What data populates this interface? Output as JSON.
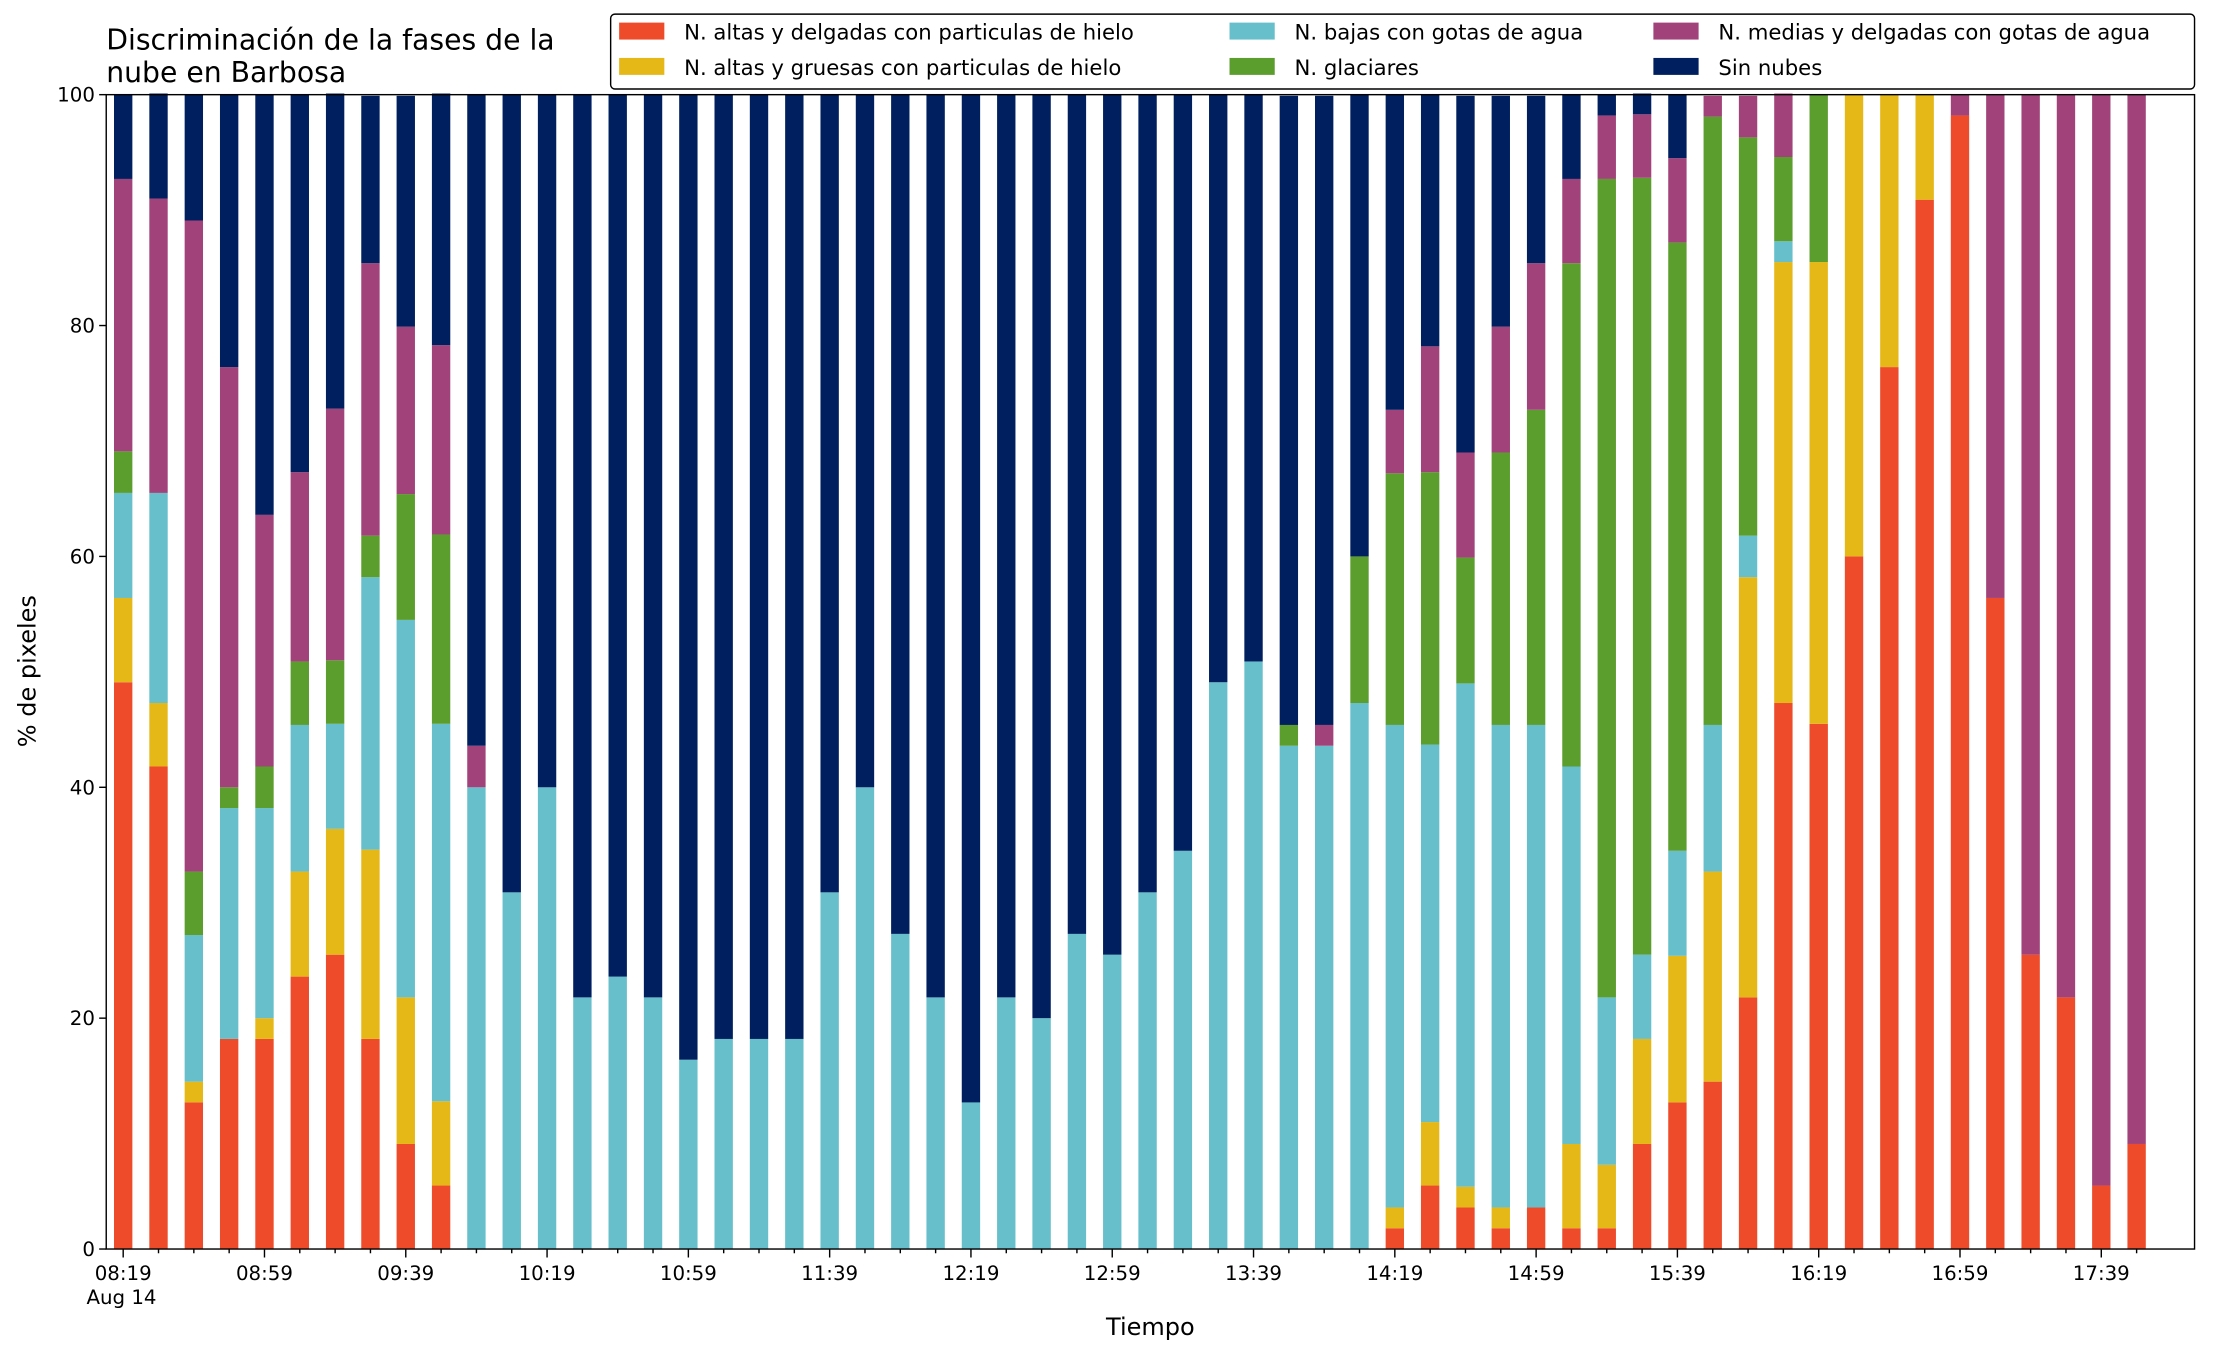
{
  "chart_data": {
    "type": "stacked-bar",
    "title": [
      "Discriminación de la fases de la",
      "nube en Barbosa"
    ],
    "xlabel": "Tiempo",
    "ylabel": "% de pixeles",
    "x_date_label": "Aug 14",
    "categories": [
      "08:19",
      null,
      null,
      null,
      "08:59",
      null,
      null,
      null,
      "09:39",
      null,
      null,
      null,
      "10:19",
      null,
      null,
      null,
      "10:59",
      null,
      null,
      null,
      "11:39",
      null,
      null,
      null,
      "12:19",
      null,
      null,
      null,
      "12:59",
      null,
      null,
      null,
      "13:39",
      null,
      null,
      null,
      "14:19",
      null,
      null,
      null,
      "14:59",
      null,
      null,
      null,
      "15:39",
      null,
      null,
      null,
      "16:19",
      null,
      null,
      null,
      "16:59",
      null,
      null,
      null,
      "17:39",
      null
    ],
    "ylim": [
      0,
      100
    ],
    "yticks": [
      0,
      20,
      40,
      60,
      80,
      100
    ],
    "legend": "top",
    "series": [
      {
        "name": "N. altas y delgadas con particulas de hielo",
        "color": "#ee4b2b",
        "values": [
          49.1,
          41.8,
          12.7,
          18.2,
          18.2,
          23.6,
          25.5,
          18.2,
          9.1,
          5.5,
          0,
          0,
          0,
          0,
          0,
          0,
          0,
          0,
          0,
          0,
          0,
          0,
          0,
          0,
          0,
          0,
          0,
          0,
          0,
          0,
          0,
          0,
          0,
          0,
          0,
          0,
          1.8,
          5.5,
          3.6,
          1.8,
          3.6,
          1.8,
          1.8,
          9.1,
          12.7,
          14.5,
          21.8,
          47.3,
          45.5,
          60.0,
          76.4,
          90.9,
          98.2,
          56.4,
          25.5,
          21.8,
          5.5,
          9.1
        ]
      },
      {
        "name": "N. altas y gruesas con particulas de hielo",
        "color": "#e6b817",
        "values": [
          7.3,
          5.5,
          1.8,
          0,
          1.8,
          9.1,
          10.9,
          16.4,
          12.7,
          7.3,
          0,
          0,
          0,
          0,
          0,
          0,
          0,
          0,
          0,
          0,
          0,
          0,
          0,
          0,
          0,
          0,
          0,
          0,
          0,
          0,
          0,
          0,
          0,
          0,
          0,
          0,
          1.8,
          5.5,
          1.8,
          1.8,
          0,
          7.3,
          5.5,
          9.1,
          12.7,
          18.2,
          36.4,
          38.2,
          40.0,
          40.0,
          23.6,
          9.1,
          0,
          0,
          0,
          0,
          0,
          0
        ]
      },
      {
        "name": "N. bajas con gotas de agua",
        "color": "#66bfcb",
        "values": [
          9.1,
          18.2,
          12.7,
          20.0,
          18.2,
          12.7,
          9.1,
          23.6,
          32.7,
          32.7,
          40.0,
          30.9,
          40.0,
          21.8,
          23.6,
          21.8,
          16.4,
          18.2,
          18.2,
          18.2,
          30.9,
          40.0,
          27.3,
          21.8,
          12.7,
          21.8,
          20.0,
          27.3,
          25.5,
          30.9,
          34.5,
          49.1,
          50.9,
          43.6,
          43.6,
          47.3,
          41.8,
          32.7,
          43.6,
          41.8,
          41.8,
          32.7,
          14.5,
          7.3,
          9.1,
          12.7,
          3.6,
          1.8,
          0,
          0,
          0,
          0,
          0,
          0,
          0,
          0,
          0,
          0
        ]
      },
      {
        "name": "N. glaciares",
        "color": "#5c9e2e",
        "values": [
          3.6,
          0,
          5.5,
          1.8,
          3.6,
          5.5,
          5.5,
          3.6,
          10.9,
          16.4,
          0,
          0,
          0,
          0,
          0,
          0,
          0,
          0,
          0,
          0,
          0,
          0,
          0,
          0,
          0,
          0,
          0,
          0,
          0,
          0,
          0,
          0,
          0,
          1.8,
          0,
          12.7,
          21.8,
          23.6,
          10.9,
          23.6,
          27.3,
          43.6,
          70.9,
          67.3,
          52.7,
          52.7,
          34.5,
          7.3,
          14.5,
          0,
          0,
          0,
          0,
          0,
          0,
          0,
          0,
          0
        ]
      },
      {
        "name": "N. medias y delgadas con gotas de agua",
        "color": "#a1437a",
        "values": [
          23.6,
          25.5,
          56.4,
          36.4,
          21.8,
          16.4,
          21.8,
          23.6,
          14.5,
          16.4,
          3.6,
          0,
          0,
          0,
          0,
          0,
          0,
          0,
          0,
          0,
          0,
          0,
          0,
          0,
          0,
          0,
          0,
          0,
          0,
          0,
          0,
          0,
          0,
          0,
          1.8,
          0,
          5.5,
          10.9,
          9.1,
          10.9,
          12.7,
          7.3,
          5.5,
          5.5,
          7.3,
          1.8,
          3.6,
          5.5,
          0,
          0,
          0,
          0,
          1.8,
          43.6,
          74.5,
          78.2,
          94.5,
          90.9
        ]
      },
      {
        "name": "Sin nubes",
        "color": "#001f5f",
        "values": [
          7.3,
          9.1,
          10.9,
          23.6,
          36.4,
          32.7,
          27.3,
          14.5,
          20.0,
          21.8,
          56.4,
          69.1,
          60.0,
          78.2,
          76.4,
          78.2,
          83.6,
          81.8,
          81.8,
          81.8,
          69.1,
          60.0,
          72.7,
          78.2,
          87.3,
          78.2,
          80.0,
          72.7,
          74.5,
          69.1,
          65.5,
          50.9,
          49.1,
          54.5,
          54.5,
          40.0,
          27.3,
          21.8,
          30.9,
          20.0,
          14.5,
          7.3,
          1.8,
          1.8,
          5.5,
          0,
          0,
          0,
          0,
          0,
          0,
          0,
          0,
          0,
          0,
          0,
          0,
          0
        ]
      }
    ]
  }
}
